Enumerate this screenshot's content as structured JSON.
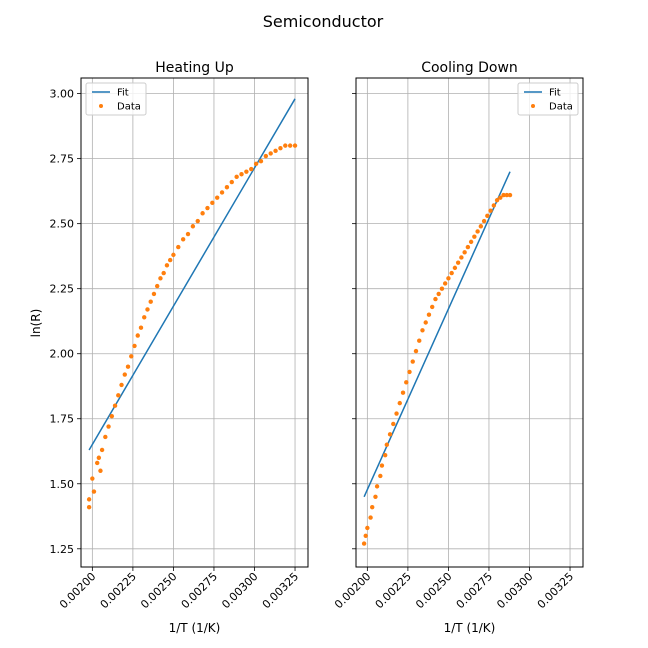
{
  "figure": {
    "suptitle": "Semiconductor",
    "colors": {
      "fit": "#1f77b4",
      "data": "#ff7f0e",
      "grid": "#b0b0b0",
      "axes": "#000000"
    }
  },
  "chart_data": [
    {
      "type": "scatter",
      "title": "Heating Up",
      "xlabel": "1/T (1/K)",
      "ylabel": "ln(R)",
      "xlim": [
        0.00193,
        0.00333
      ],
      "ylim": [
        1.18,
        3.06
      ],
      "xticks": [
        0.002,
        0.00225,
        0.0025,
        0.00275,
        0.003,
        0.00325
      ],
      "xtick_labels": [
        "0.00200",
        "0.00225",
        "0.00250",
        "0.00275",
        "0.00300",
        "0.00325"
      ],
      "yticks": [
        1.25,
        1.5,
        1.75,
        2.0,
        2.25,
        2.5,
        2.75,
        3.0
      ],
      "ytick_labels": [
        "1.25",
        "1.50",
        "1.75",
        "2.00",
        "2.25",
        "2.50",
        "2.75",
        "3.00"
      ],
      "grid": true,
      "legend": {
        "placement": "top-left",
        "entries": [
          "Fit",
          "Data"
        ]
      },
      "series": [
        {
          "name": "Fit",
          "kind": "line",
          "x": [
            0.00198,
            0.00325
          ],
          "y": [
            1.63,
            2.98
          ]
        },
        {
          "name": "Data",
          "kind": "points",
          "x": [
            0.00198,
            0.00198,
            0.002,
            0.00201,
            0.00203,
            0.00204,
            0.00205,
            0.00206,
            0.00208,
            0.0021,
            0.00212,
            0.00214,
            0.00216,
            0.00218,
            0.0022,
            0.00222,
            0.00224,
            0.00226,
            0.00228,
            0.0023,
            0.00232,
            0.00234,
            0.00236,
            0.00238,
            0.0024,
            0.00242,
            0.00244,
            0.00246,
            0.00248,
            0.0025,
            0.00253,
            0.00256,
            0.00259,
            0.00262,
            0.00265,
            0.00268,
            0.00271,
            0.00274,
            0.00277,
            0.0028,
            0.00283,
            0.00286,
            0.00289,
            0.00292,
            0.00295,
            0.00298,
            0.00301,
            0.00304,
            0.00307,
            0.0031,
            0.00313,
            0.00316,
            0.00319,
            0.00322,
            0.00325
          ],
          "y": [
            1.41,
            1.44,
            1.52,
            1.47,
            1.58,
            1.6,
            1.55,
            1.63,
            1.68,
            1.72,
            1.76,
            1.8,
            1.84,
            1.88,
            1.92,
            1.95,
            1.99,
            2.03,
            2.07,
            2.1,
            2.14,
            2.17,
            2.2,
            2.23,
            2.26,
            2.29,
            2.31,
            2.34,
            2.36,
            2.38,
            2.41,
            2.44,
            2.46,
            2.49,
            2.51,
            2.54,
            2.56,
            2.58,
            2.6,
            2.62,
            2.64,
            2.66,
            2.68,
            2.69,
            2.7,
            2.71,
            2.73,
            2.74,
            2.76,
            2.77,
            2.78,
            2.79,
            2.8,
            2.8,
            2.8
          ]
        }
      ]
    },
    {
      "type": "scatter",
      "title": "Cooling Down",
      "xlabel": "1/T (1/K)",
      "ylabel": "",
      "xlim": [
        0.00193,
        0.00333
      ],
      "ylim": [
        1.18,
        3.06
      ],
      "xticks": [
        0.002,
        0.00225,
        0.0025,
        0.00275,
        0.003,
        0.00325
      ],
      "xtick_labels": [
        "0.00200",
        "0.00225",
        "0.00250",
        "0.00275",
        "0.00300",
        "0.00325"
      ],
      "yticks": [
        1.25,
        1.5,
        1.75,
        2.0,
        2.25,
        2.5,
        2.75,
        3.0
      ],
      "grid": true,
      "legend": {
        "placement": "top-right",
        "entries": [
          "Fit",
          "Data"
        ]
      },
      "series": [
        {
          "name": "Fit",
          "kind": "line",
          "x": [
            0.00198,
            0.00288
          ],
          "y": [
            1.45,
            2.7
          ]
        },
        {
          "name": "Data",
          "kind": "points",
          "x": [
            0.00198,
            0.00199,
            0.002,
            0.00202,
            0.00203,
            0.00205,
            0.00206,
            0.00208,
            0.00209,
            0.00211,
            0.00212,
            0.00214,
            0.00216,
            0.00218,
            0.0022,
            0.00222,
            0.00224,
            0.00226,
            0.00228,
            0.0023,
            0.00232,
            0.00234,
            0.00236,
            0.00238,
            0.0024,
            0.00242,
            0.00244,
            0.00246,
            0.00248,
            0.0025,
            0.00252,
            0.00254,
            0.00256,
            0.00258,
            0.0026,
            0.00262,
            0.00264,
            0.00266,
            0.00268,
            0.0027,
            0.00272,
            0.00274,
            0.00276,
            0.00278,
            0.0028,
            0.00282,
            0.00284,
            0.00286,
            0.00288
          ],
          "y": [
            1.27,
            1.3,
            1.33,
            1.37,
            1.41,
            1.45,
            1.49,
            1.53,
            1.57,
            1.61,
            1.65,
            1.69,
            1.73,
            1.77,
            1.81,
            1.85,
            1.89,
            1.93,
            1.97,
            2.01,
            2.05,
            2.09,
            2.12,
            2.15,
            2.18,
            2.21,
            2.23,
            2.25,
            2.27,
            2.29,
            2.31,
            2.33,
            2.35,
            2.37,
            2.39,
            2.41,
            2.43,
            2.45,
            2.47,
            2.49,
            2.51,
            2.53,
            2.55,
            2.57,
            2.59,
            2.6,
            2.61,
            2.61,
            2.61
          ]
        }
      ]
    }
  ]
}
